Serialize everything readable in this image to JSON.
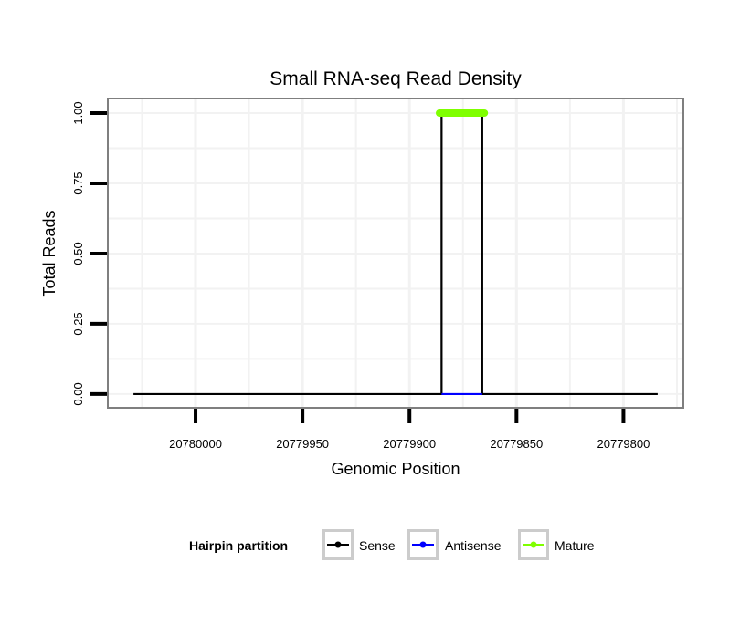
{
  "chart_data": {
    "type": "line",
    "title": "Small RNA-seq Read Density",
    "xlabel": "Genomic Position",
    "ylabel": "Total Reads",
    "xlim": [
      20780041,
      20779772
    ],
    "x_reversed": true,
    "ylim": [
      -0.049,
      1.052
    ],
    "xticks": [
      20780000,
      20779950,
      20779900,
      20779850,
      20779800
    ],
    "xtick_labels": [
      "20780000",
      "20779950",
      "20779900",
      "20779850",
      "20779800"
    ],
    "yticks": [
      0,
      0.25,
      0.5,
      0.75,
      1
    ],
    "ytick_labels": [
      "0.00",
      "0.25",
      "0.50",
      "0.75",
      "1.00"
    ],
    "grid": true,
    "legend": {
      "title": "Hairpin partition",
      "placement": "bottom",
      "entries": [
        "Sense",
        "Antisense",
        "Mature"
      ]
    },
    "series": [
      {
        "name": "Sense",
        "color": "#000000",
        "x": [
          20780029,
          20779885,
          20779885,
          20779866,
          20779866,
          20779784
        ],
        "y": [
          0,
          0,
          1,
          1,
          0,
          0
        ]
      },
      {
        "name": "Antisense",
        "color": "#0000ff",
        "x": [
          20779885,
          20779866
        ],
        "y": [
          0,
          0
        ]
      },
      {
        "name": "Mature",
        "color": "#7fff00",
        "x": [
          20779886,
          20779865
        ],
        "y": [
          1,
          1
        ],
        "style": "thick-points"
      }
    ]
  }
}
